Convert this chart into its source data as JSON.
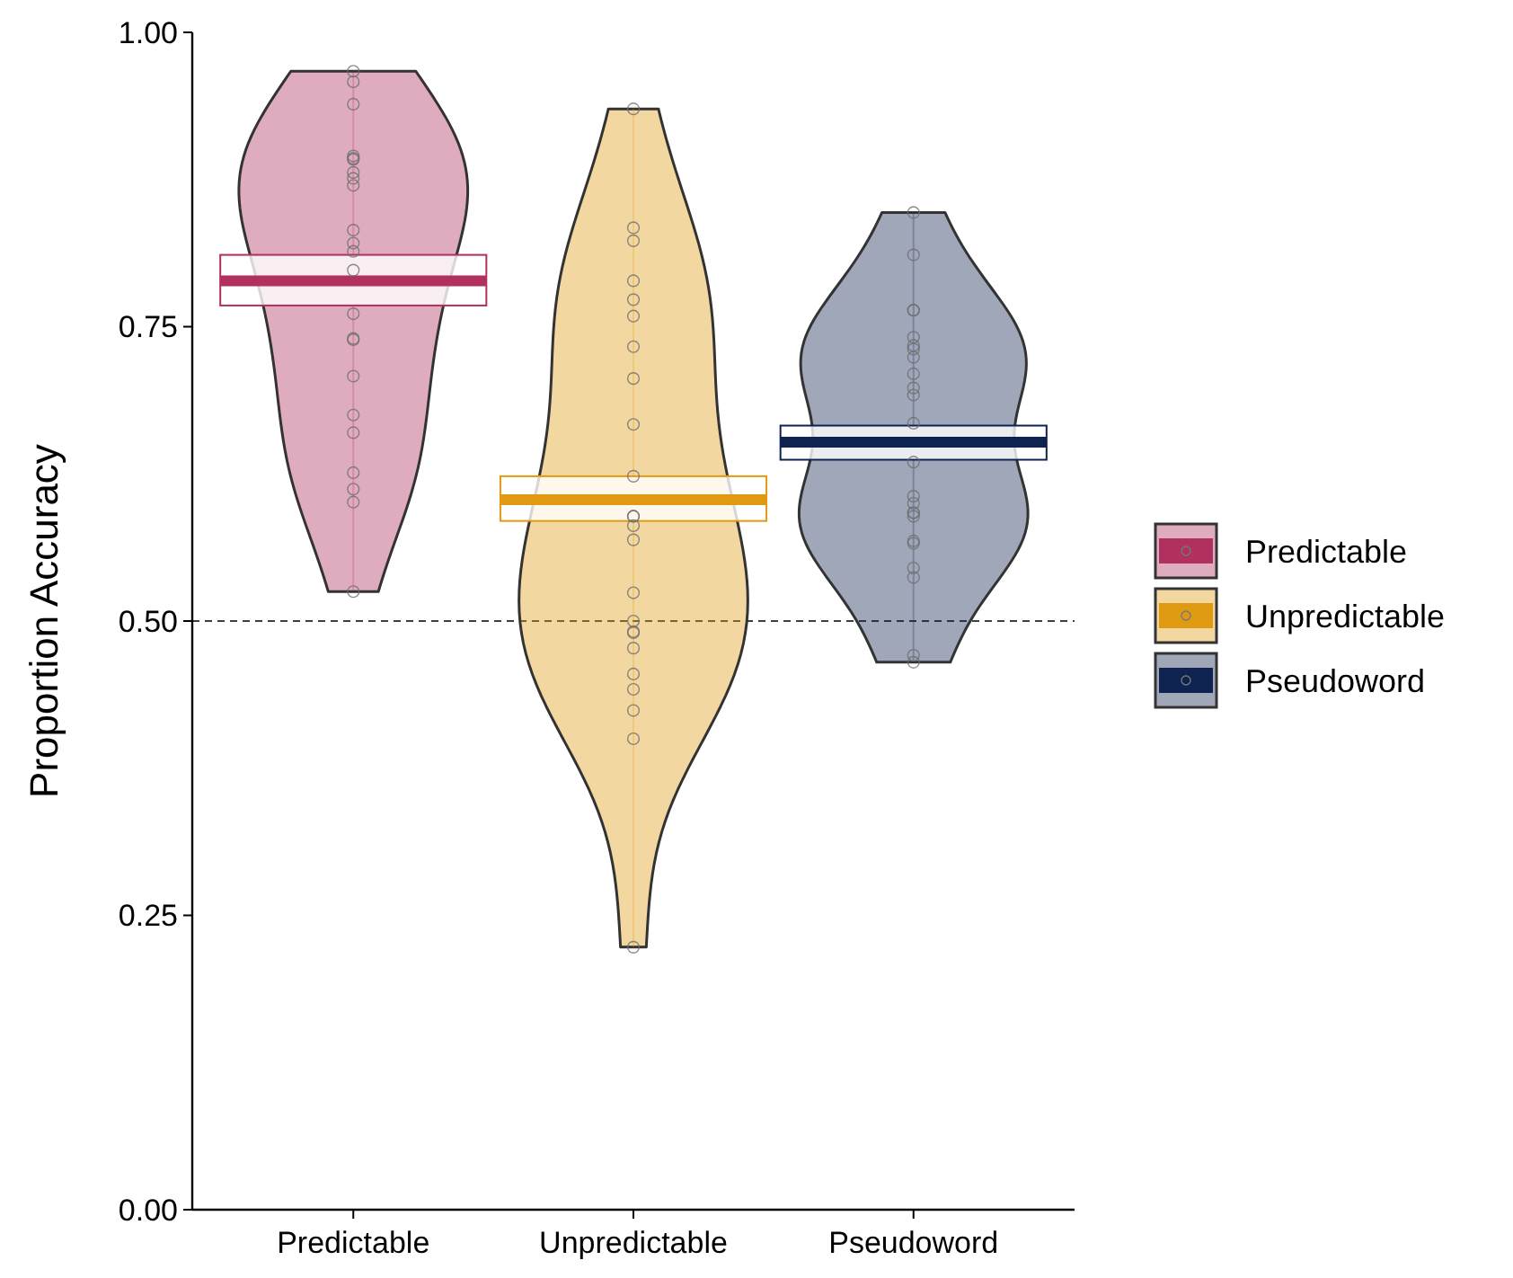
{
  "chart_data": {
    "type": "box",
    "ylabel": "Proportion Accuracy",
    "categories": [
      "Predictable",
      "Unpredictable",
      "Pseudoword"
    ],
    "ylim": [
      0,
      1
    ],
    "yticks": [
      {
        "value": 0,
        "label": "0.00"
      },
      {
        "value": 0.25,
        "label": "0.25"
      },
      {
        "value": 0.5,
        "label": "0.50"
      },
      {
        "value": 0.75,
        "label": "0.75"
      },
      {
        "value": 1,
        "label": "1.00"
      }
    ],
    "grid": false,
    "legend": "right",
    "marker": "circle",
    "ref_lines": [
      {
        "axis": "y",
        "value": 0.5,
        "color": "#000000",
        "line_style": "dashed"
      }
    ],
    "series": [
      {
        "name": "Predictable",
        "color": "#b0305f",
        "type": "box",
        "boxes": [
          {
            "low": 0.525,
            "q1": 0.768,
            "median": 0.789,
            "q3": 0.811,
            "high": 0.967
          },
          null,
          null
        ]
      },
      {
        "name": "Unpredictable",
        "color": "#e09a12",
        "type": "box",
        "boxes": [
          null,
          {
            "low": 0.223,
            "q1": 0.585,
            "median": 0.603,
            "q3": 0.623,
            "high": 0.935
          },
          null
        ]
      },
      {
        "name": "Pseudoword",
        "color": "#0f2350",
        "type": "box",
        "boxes": [
          null,
          null,
          {
            "low": 0.465,
            "q1": 0.637,
            "median": 0.652,
            "q3": 0.666,
            "high": 0.847
          }
        ]
      },
      {
        "type": "scatter",
        "color": "#6e6e6e",
        "x": [
          "Predictable",
          "Predictable",
          "Predictable",
          "Predictable",
          "Predictable",
          "Predictable",
          "Predictable",
          "Predictable",
          "Predictable",
          "Predictable",
          "Predictable",
          "Predictable",
          "Predictable",
          "Predictable",
          "Predictable",
          "Predictable",
          "Predictable",
          "Predictable",
          "Predictable",
          "Predictable",
          "Predictable",
          "Predictable",
          "Predictable"
        ],
        "values": [
          0.967,
          0.958,
          0.939,
          0.892,
          0.895,
          0.893,
          0.881,
          0.876,
          0.87,
          0.832,
          0.821,
          0.814,
          0.798,
          0.761,
          0.74,
          0.739,
          0.708,
          0.675,
          0.66,
          0.626,
          0.612,
          0.601,
          0.525
        ]
      },
      {
        "type": "scatter",
        "color": "#6e6e6e",
        "x": [
          "Unpredictable",
          "Unpredictable",
          "Unpredictable",
          "Unpredictable",
          "Unpredictable",
          "Unpredictable",
          "Unpredictable",
          "Unpredictable",
          "Unpredictable",
          "Unpredictable",
          "Unpredictable",
          "Unpredictable",
          "Unpredictable",
          "Unpredictable",
          "Unpredictable",
          "Unpredictable",
          "Unpredictable",
          "Unpredictable",
          "Unpredictable",
          "Unpredictable",
          "Unpredictable",
          "Unpredictable",
          "Unpredictable",
          "Unpredictable"
        ],
        "values": [
          0.935,
          0.834,
          0.823,
          0.789,
          0.773,
          0.759,
          0.733,
          0.706,
          0.667,
          0.623,
          0.589,
          0.589,
          0.581,
          0.569,
          0.524,
          0.5,
          0.49,
          0.491,
          0.477,
          0.455,
          0.442,
          0.424,
          0.4,
          0.223
        ]
      },
      {
        "type": "scatter",
        "color": "#6e6e6e",
        "x": [
          "Pseudoword",
          "Pseudoword",
          "Pseudoword",
          "Pseudoword",
          "Pseudoword",
          "Pseudoword",
          "Pseudoword",
          "Pseudoword",
          "Pseudoword",
          "Pseudoword",
          "Pseudoword",
          "Pseudoword",
          "Pseudoword",
          "Pseudoword",
          "Pseudoword",
          "Pseudoword",
          "Pseudoword",
          "Pseudoword",
          "Pseudoword",
          "Pseudoword",
          "Pseudoword",
          "Pseudoword",
          "Pseudoword",
          "Pseudoword"
        ],
        "values": [
          0.847,
          0.811,
          0.764,
          0.764,
          0.741,
          0.734,
          0.731,
          0.724,
          0.71,
          0.698,
          0.692,
          0.668,
          0.635,
          0.606,
          0.6,
          0.592,
          0.592,
          0.589,
          0.568,
          0.566,
          0.545,
          0.537,
          0.471,
          0.465
        ]
      }
    ]
  }
}
